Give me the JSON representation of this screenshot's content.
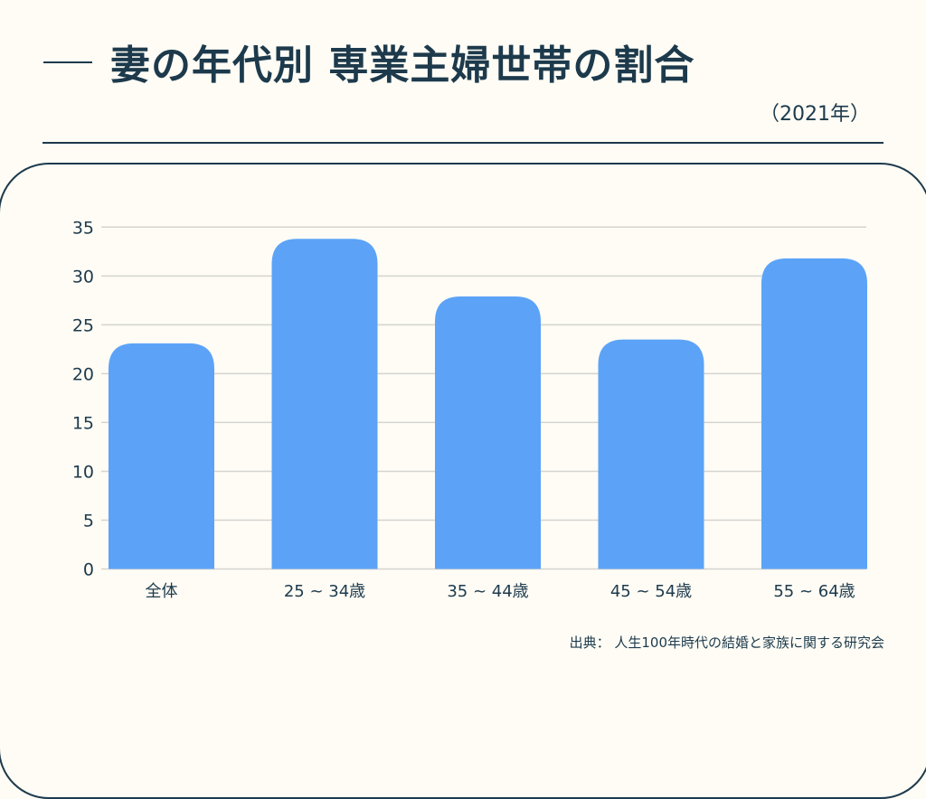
{
  "title": "妻の年代別 専業主婦世帯の割合",
  "subtitle": "（2021年）",
  "source": "出典：  人生100年時代の結婚と家族に関する研究会",
  "chart_data": {
    "type": "bar",
    "categories": [
      "全体",
      "25 ~ 34歳",
      "35 ~ 44歳",
      "45 ~ 54歳",
      "55 ~ 64歳"
    ],
    "values": [
      23.1,
      33.8,
      27.9,
      23.5,
      31.8
    ],
    "ylim": [
      0,
      35
    ],
    "yticks": [
      0,
      5,
      10,
      15,
      20,
      25,
      30,
      35
    ],
    "grid": true,
    "bar_color": "#5ca3f8"
  }
}
